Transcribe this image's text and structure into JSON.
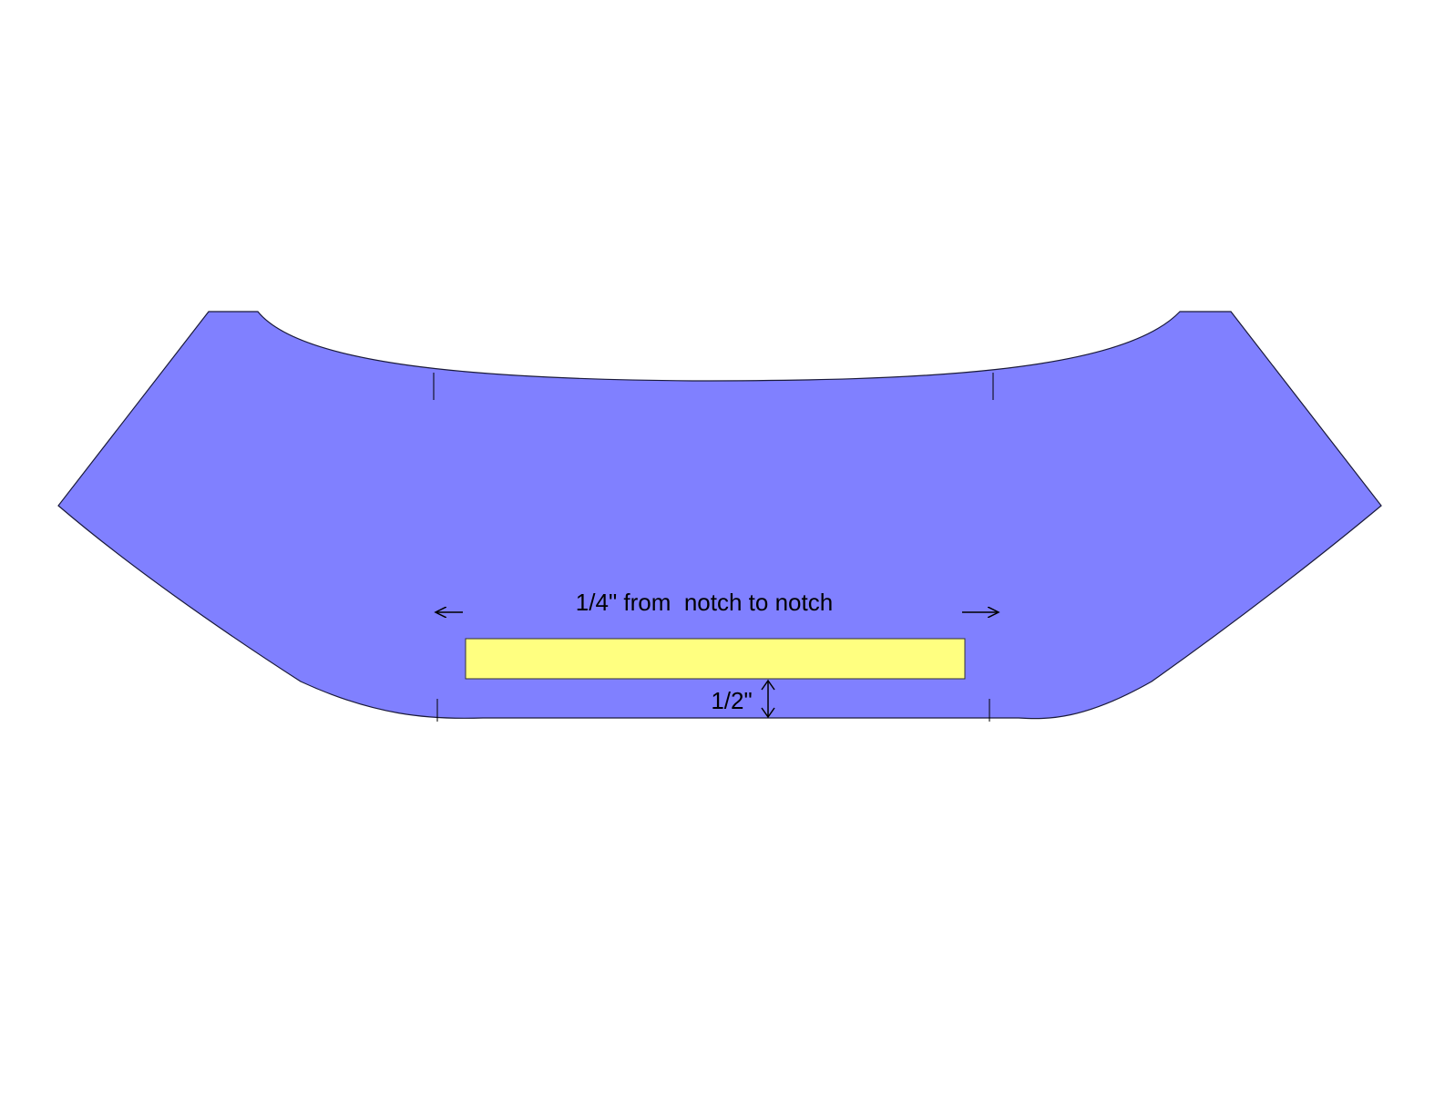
{
  "diagram": {
    "labels": {
      "width_measure": "1/4\" from  notch to notch",
      "height_measure": "1/2\""
    },
    "colors": {
      "pattern_piece_fill": "#8080FF",
      "pattern_piece_stroke": "#1a1a3a",
      "stay_tape_fill": "#FFFF80",
      "stay_tape_stroke": "#333333",
      "arrow_color": "#000000",
      "background": "#FFFFFF"
    },
    "icons": {
      "left_arrow": "arrow-left-icon",
      "right_arrow": "arrow-right-icon",
      "vertical_double_arrow": "double-arrow-vertical-icon"
    }
  }
}
